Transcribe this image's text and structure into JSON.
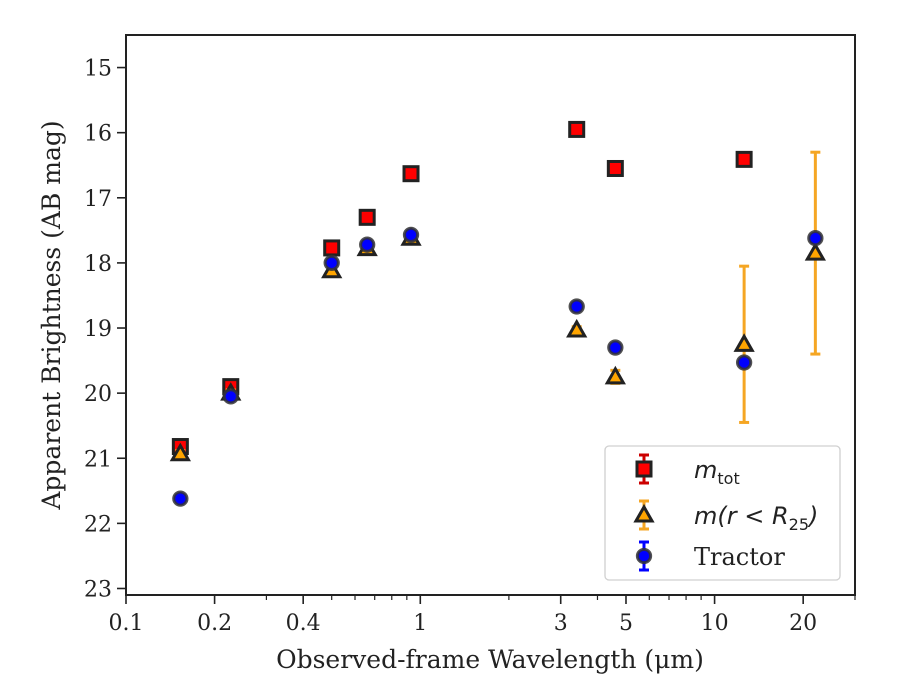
{
  "chart_data": {
    "type": "scatter",
    "title": "",
    "xlabel": "Observed-frame Wavelength (μm)",
    "ylabel": "Apparent Brightness (AB mag)",
    "xscale": "log",
    "xlim": [
      0.1,
      30
    ],
    "ylim": [
      23.1,
      14.5
    ],
    "y_inverted": true,
    "x_ticks": [
      0.1,
      0.2,
      0.4,
      1,
      3,
      5,
      10,
      20
    ],
    "x_tick_labels": [
      "0.1",
      "0.2",
      "0.4",
      "1",
      "3",
      "5",
      "10",
      "20"
    ],
    "y_ticks": [
      15,
      16,
      17,
      18,
      19,
      20,
      21,
      22,
      23
    ],
    "y_tick_labels": [
      "15",
      "16",
      "17",
      "18",
      "19",
      "20",
      "21",
      "22",
      "23"
    ],
    "grid": false,
    "legend_position": "lower-right",
    "series": [
      {
        "name": "m_tot",
        "legend_main": "m",
        "legend_sub": "tot",
        "marker": "square",
        "color": "#ff0000",
        "errorbar_color": "#cc0000",
        "points": [
          {
            "x": 0.153,
            "y": 20.82,
            "err": 0.05
          },
          {
            "x": 0.227,
            "y": 19.9,
            "err": 0.05
          },
          {
            "x": 0.5,
            "y": 17.77,
            "err": 0.03
          },
          {
            "x": 0.66,
            "y": 17.3,
            "err": 0.03
          },
          {
            "x": 0.93,
            "y": 16.63,
            "err": 0.03
          },
          {
            "x": 3.4,
            "y": 15.95,
            "err": 0.02
          },
          {
            "x": 4.6,
            "y": 16.55,
            "err": 0.02
          },
          {
            "x": 12.6,
            "y": 16.41,
            "err": 0.02
          }
        ]
      },
      {
        "name": "m(r < R_25)",
        "legend_main": "m(r < R",
        "legend_sub": "25",
        "legend_close": ")",
        "marker": "triangle",
        "color": "#ffa500",
        "errorbar_color": "#f5a623",
        "points": [
          {
            "x": 0.153,
            "y": 20.93,
            "err": 0.05
          },
          {
            "x": 0.227,
            "y": 20.0,
            "err": 0.05
          },
          {
            "x": 0.5,
            "y": 18.12,
            "err": 0.03
          },
          {
            "x": 0.66,
            "y": 17.78,
            "err": 0.03
          },
          {
            "x": 0.93,
            "y": 17.62,
            "err": 0.03
          },
          {
            "x": 3.4,
            "y": 19.03,
            "err": 0.05
          },
          {
            "x": 4.6,
            "y": 19.75,
            "err": 0.1
          },
          {
            "x": 12.6,
            "y": 19.25,
            "err": 1.2
          },
          {
            "x": 22.0,
            "y": 17.85,
            "err": 1.55
          }
        ]
      },
      {
        "name": "Tractor",
        "marker": "circle",
        "color": "#0000ff",
        "errorbar_color": "#0000ff",
        "points": [
          {
            "x": 0.153,
            "y": 21.62,
            "err": 0.05
          },
          {
            "x": 0.227,
            "y": 20.05,
            "err": 0.05
          },
          {
            "x": 0.5,
            "y": 18.0,
            "err": 0.05
          },
          {
            "x": 0.66,
            "y": 17.72,
            "err": 0.05
          },
          {
            "x": 0.93,
            "y": 17.57,
            "err": 0.05
          },
          {
            "x": 3.4,
            "y": 18.67,
            "err": 0.05
          },
          {
            "x": 4.6,
            "y": 19.3,
            "err": 0.05
          },
          {
            "x": 12.6,
            "y": 19.53,
            "err": 0.05
          },
          {
            "x": 22.0,
            "y": 17.62,
            "err": 0.05
          }
        ]
      }
    ]
  }
}
